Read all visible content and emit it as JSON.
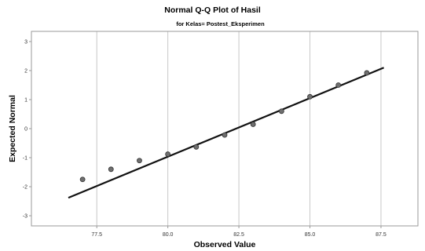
{
  "chart_data": {
    "type": "scatter",
    "title": "Normal Q-Q Plot of Hasil",
    "subtitle": "for Kelas= Postest_Eksperimen",
    "xlabel": "Observed Value",
    "ylabel": "Expected Normal",
    "xlim": [
      75.2,
      88.8
    ],
    "ylim": [
      -3.35,
      3.35
    ],
    "xticks": [
      77.5,
      80.0,
      82.5,
      85.0,
      87.5
    ],
    "xtick_labels": [
      "77.5",
      "80.0",
      "82.5",
      "85.0",
      "87.5"
    ],
    "yticks": [
      -3,
      -2,
      -1,
      0,
      1,
      2,
      3
    ],
    "ytick_labels": [
      "-3",
      "-2",
      "-1",
      "0",
      "1",
      "2",
      "3"
    ],
    "grid": "vertical",
    "points": [
      {
        "x": 77,
        "y": -1.75
      },
      {
        "x": 78,
        "y": -1.4
      },
      {
        "x": 79,
        "y": -1.1
      },
      {
        "x": 80,
        "y": -0.88
      },
      {
        "x": 81,
        "y": -0.63
      },
      {
        "x": 82,
        "y": -0.22
      },
      {
        "x": 83,
        "y": 0.15
      },
      {
        "x": 84,
        "y": 0.6
      },
      {
        "x": 85,
        "y": 1.1
      },
      {
        "x": 86,
        "y": 1.5
      },
      {
        "x": 87,
        "y": 1.92
      }
    ],
    "reference_line": {
      "x": [
        76.5,
        87.6
      ],
      "y": [
        -2.38,
        2.1
      ]
    },
    "colors": {
      "point_fill": "#6f6f6f",
      "point_stroke": "#333333",
      "line": "#111111",
      "grid": "#c8c8c8",
      "frame": "#999999",
      "tick_label": "#333333"
    }
  }
}
